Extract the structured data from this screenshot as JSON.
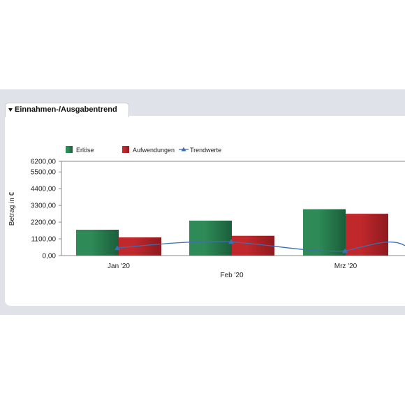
{
  "panel": {
    "tab_title": "Einnahmen-/Ausgabentrend"
  },
  "colors": {
    "erloese": "#2e8b57",
    "aufwendungen": "#c0282c",
    "trend": "#3d6fb0"
  },
  "chart_data": {
    "type": "bar",
    "categories": [
      "Jan '20",
      "Feb '20",
      "Mrz '20"
    ],
    "series": [
      {
        "name": "Erlöse",
        "values": [
          1700,
          2300,
          3050
        ]
      },
      {
        "name": "Aufwendungen",
        "values": [
          1200,
          1300,
          2750
        ]
      },
      {
        "name": "Trendwerte",
        "type": "line",
        "values": [
          500,
          900,
          300
        ]
      }
    ],
    "ylabel": "Betrag in €",
    "yticks": [
      "0,00",
      "1100,00",
      "2200,00",
      "3300,00",
      "4400,00",
      "5500,00",
      "6200,00"
    ],
    "ytick_values": [
      0,
      1100,
      2200,
      3300,
      4400,
      5500,
      6200
    ],
    "ylim": [
      0,
      6200
    ],
    "legend_position": "top-left",
    "grid": false
  }
}
